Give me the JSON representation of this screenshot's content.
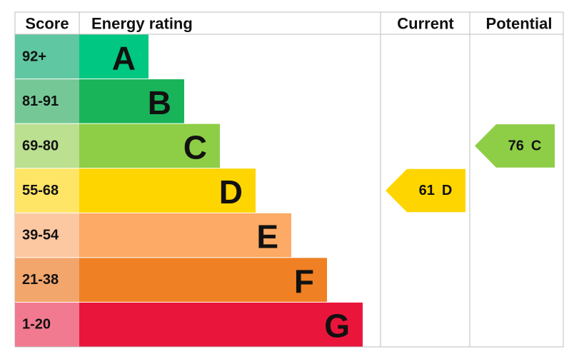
{
  "header": {
    "score": "Score",
    "rating": "Energy rating",
    "current": "Current",
    "potential": "Potential"
  },
  "bands": [
    {
      "score": "92+",
      "letter": "A",
      "color": "#00c781",
      "score_color": "#5fc7a2"
    },
    {
      "score": "81-91",
      "letter": "B",
      "color": "#19b459",
      "score_color": "#75c896"
    },
    {
      "score": "69-80",
      "letter": "C",
      "color": "#8dce46",
      "score_color": "#bbe090"
    },
    {
      "score": "55-68",
      "letter": "D",
      "color": "#ffd500",
      "score_color": "#ffe566"
    },
    {
      "score": "39-54",
      "letter": "E",
      "color": "#fcaa65",
      "score_color": "#fcc8a2"
    },
    {
      "score": "21-38",
      "letter": "F",
      "color": "#ef8023",
      "score_color": "#f3a66b"
    },
    {
      "score": "1-20",
      "letter": "G",
      "color": "#e9153b",
      "score_color": "#f27a90"
    }
  ],
  "current": {
    "value": 61,
    "letter": "D"
  },
  "potential": {
    "value": 76,
    "letter": "C"
  }
}
